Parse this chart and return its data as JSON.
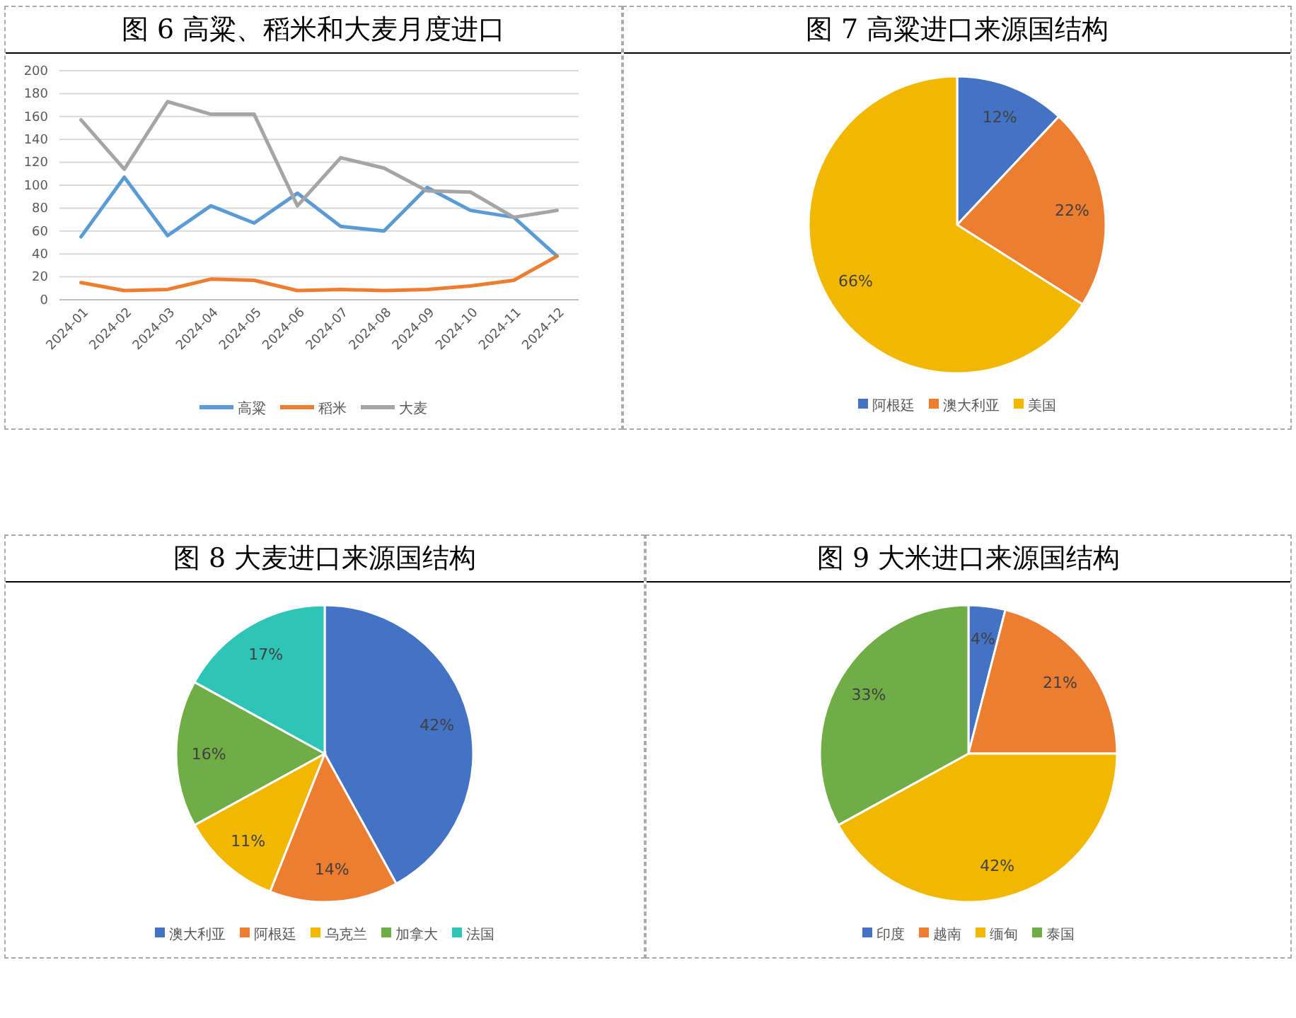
{
  "chart_data": [
    {
      "type": "line",
      "title": "图 6 高粱、稻米和大麦月度进口",
      "categories": [
        "2024-01",
        "2024-02",
        "2024-03",
        "2024-04",
        "2024-05",
        "2024-06",
        "2024-07",
        "2024-08",
        "2024-09",
        "2024-10",
        "2024-11",
        "2024-12"
      ],
      "series": [
        {
          "name": "高粱",
          "color": "#5b9bd5",
          "values": [
            55,
            107,
            56,
            82,
            67,
            93,
            64,
            60,
            98,
            78,
            72,
            38
          ]
        },
        {
          "name": "稻米",
          "color": "#ed7d31",
          "values": [
            15,
            8,
            9,
            18,
            17,
            8,
            9,
            8,
            9,
            12,
            17,
            38
          ]
        },
        {
          "name": "大麦",
          "color": "#a5a5a5",
          "values": [
            157,
            114,
            173,
            162,
            162,
            82,
            124,
            115,
            95,
            94,
            72,
            78
          ]
        }
      ],
      "ylim": [
        0,
        200
      ],
      "yticks": [
        0,
        20,
        40,
        60,
        80,
        100,
        120,
        140,
        160,
        180,
        200
      ],
      "grid": "y",
      "legend": "bottom",
      "marker": "none",
      "line_style": "solid"
    },
    {
      "type": "pie",
      "title": "图 7 高粱进口来源国结构",
      "categories": [
        "阿根廷",
        "澳大利亚",
        "美国"
      ],
      "values": [
        12,
        22,
        66
      ],
      "value_labels": [
        "12%",
        "22%",
        "66%"
      ],
      "colors": [
        "#4472c4",
        "#ed7d31",
        "#f2b800"
      ],
      "legend": "bottom"
    },
    {
      "type": "pie",
      "title": "图 8 大麦进口来源国结构",
      "categories": [
        "澳大利亚",
        "阿根廷",
        "乌克兰",
        "加拿大",
        "法国"
      ],
      "values": [
        42,
        14,
        11,
        16,
        17
      ],
      "value_labels": [
        "42%",
        "14%",
        "11%",
        "16%",
        "17%"
      ],
      "colors": [
        "#4472c4",
        "#ed7d31",
        "#f2b800",
        "#70ad47",
        "#2ec4b6"
      ],
      "legend": "bottom"
    },
    {
      "type": "pie",
      "title": "图 9 大米进口来源国结构",
      "categories": [
        "印度",
        "越南",
        "缅甸",
        "泰国"
      ],
      "values": [
        4,
        21,
        42,
        33
      ],
      "value_labels": [
        "4%",
        "21%",
        "42%",
        "33%"
      ],
      "colors": [
        "#4472c4",
        "#ed7d31",
        "#f2b800",
        "#70ad47"
      ],
      "legend": "bottom"
    }
  ]
}
